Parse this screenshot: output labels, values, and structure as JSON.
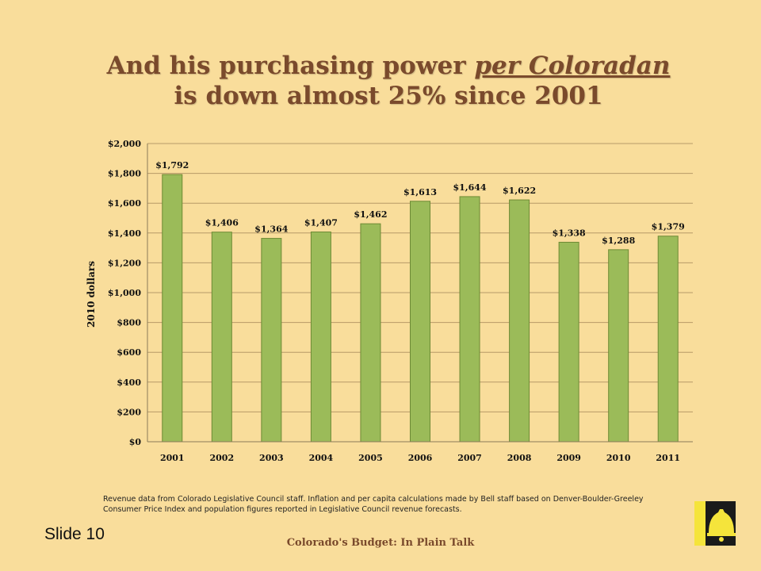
{
  "title": {
    "part1": "And his purchasing power ",
    "emphasis": "per Coloradan",
    "part2": "is down almost 25% since 2001"
  },
  "chart_data": {
    "type": "bar",
    "categories": [
      "2001",
      "2002",
      "2003",
      "2004",
      "2005",
      "2006",
      "2007",
      "2008",
      "2009",
      "2010",
      "2011"
    ],
    "values": [
      1792,
      1406,
      1364,
      1407,
      1462,
      1613,
      1644,
      1622,
      1338,
      1288,
      1379
    ],
    "data_labels": [
      "$1,792",
      "$1,406",
      "$1,364",
      "$1,407",
      "$1,462",
      "$1,613",
      "$1,644",
      "$1,622",
      "$1,338",
      "$1,288",
      "$1,379"
    ],
    "ylabel": "2010 dollars",
    "xlabel": "",
    "ylim": [
      0,
      2000
    ],
    "yticks": [
      0,
      200,
      400,
      600,
      800,
      1000,
      1200,
      1400,
      1600,
      1800,
      2000
    ],
    "ytick_labels": [
      "$0",
      "$200",
      "$400",
      "$600",
      "$800",
      "$1,000",
      "$1,200",
      "$1,400",
      "$1,600",
      "$1,800",
      "$2,000"
    ],
    "grid": true,
    "bar_color": "#9bbb59",
    "bar_edge_color": "#6e8a35"
  },
  "footnote": "Revenue data from Colorado Legislative Council staff. Inflation and per capita calculations made by Bell staff based on Denver-Boulder-Greeley Consumer Price Index and population figures reported in Legislative Council revenue forecasts.",
  "slide_number": "Slide 10",
  "footer": "Colorado's Budget: In Plain Talk",
  "logo": {
    "icon": "bell-icon",
    "background": "#1a1a1a",
    "accent": "#f5e43b"
  }
}
